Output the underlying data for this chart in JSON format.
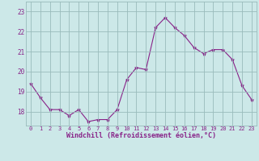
{
  "x": [
    0,
    1,
    2,
    3,
    4,
    5,
    6,
    7,
    8,
    9,
    10,
    11,
    12,
    13,
    14,
    15,
    16,
    17,
    18,
    19,
    20,
    21,
    22,
    23
  ],
  "y": [
    19.4,
    18.7,
    18.1,
    18.1,
    17.8,
    18.1,
    17.5,
    17.6,
    17.6,
    18.1,
    19.6,
    20.2,
    20.1,
    22.2,
    22.7,
    22.2,
    21.8,
    21.2,
    20.9,
    21.1,
    21.1,
    20.6,
    19.3,
    18.6
  ],
  "line_color": "#882288",
  "marker": "*",
  "bg_color": "#cce8e8",
  "grid_color": "#99bbbb",
  "xlabel": "Windchill (Refroidissement éolien,°C)",
  "xlabel_color": "#882288",
  "tick_color": "#882288",
  "ylim_min": 17.3,
  "ylim_max": 23.5,
  "xlim_min": -0.5,
  "xlim_max": 23.5,
  "yticks": [
    18,
    19,
    20,
    21,
    22,
    23
  ],
  "xticks": [
    0,
    1,
    2,
    3,
    4,
    5,
    6,
    7,
    8,
    9,
    10,
    11,
    12,
    13,
    14,
    15,
    16,
    17,
    18,
    19,
    20,
    21,
    22,
    23
  ]
}
